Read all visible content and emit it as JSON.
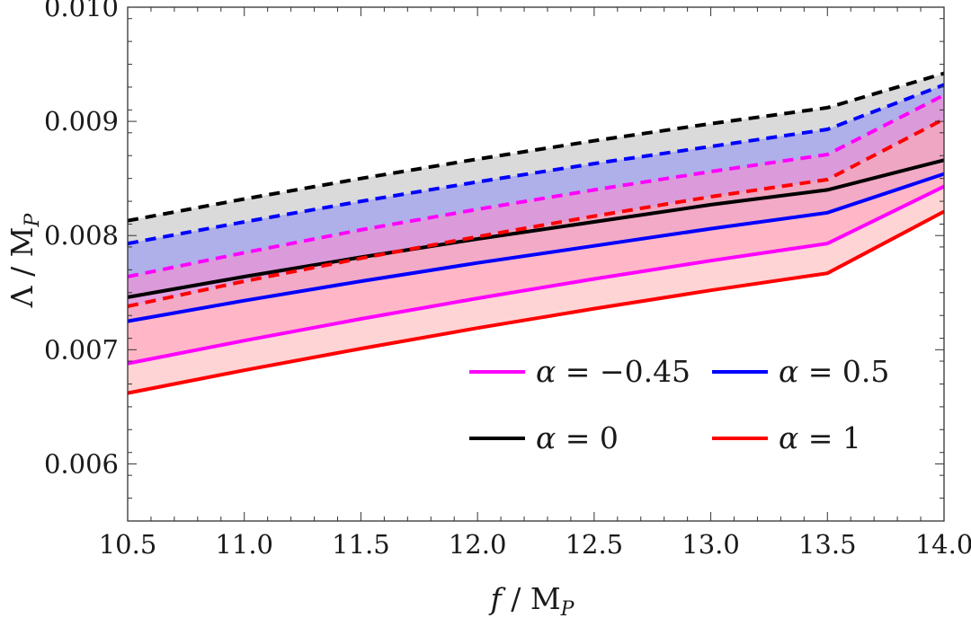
{
  "chart_data": {
    "type": "area",
    "xlabel": "f / MP",
    "ylabel": "Λ / MP",
    "xlim": [
      10.5,
      14.0
    ],
    "ylim": [
      0.0055,
      0.01
    ],
    "x_ticks": [
      10.5,
      11.0,
      11.5,
      12.0,
      12.5,
      13.0,
      13.5,
      14.0
    ],
    "x_tick_labels": [
      "10.5",
      "11.0",
      "11.5",
      "12.0",
      "12.5",
      "13.0",
      "13.5",
      "14.0"
    ],
    "y_ticks": [
      0.006,
      0.007,
      0.008,
      0.009,
      0.01
    ],
    "y_tick_labels": [
      "0.006",
      "0.007",
      "0.008",
      "0.009",
      "0.010"
    ],
    "x": [
      10.5,
      11.0,
      11.5,
      12.0,
      12.5,
      13.0,
      13.5,
      14.0
    ],
    "series": [
      {
        "name": "α = 0",
        "color": "#000000",
        "fill": "#bbbbbb",
        "lower": [
          0.00746,
          0.00764,
          0.00781,
          0.00797,
          0.00812,
          0.00827,
          0.0084,
          0.00866
        ],
        "upper": [
          0.00813,
          0.00832,
          0.0085,
          0.00867,
          0.00883,
          0.00898,
          0.00912,
          0.00942
        ]
      },
      {
        "name": "α = 0.5",
        "color": "#0000ff",
        "fill": "#8c8cf5",
        "lower": [
          0.00725,
          0.00743,
          0.0076,
          0.00776,
          0.00791,
          0.00806,
          0.0082,
          0.00854
        ],
        "upper": [
          0.00793,
          0.00812,
          0.0083,
          0.00847,
          0.00863,
          0.00878,
          0.00893,
          0.00932
        ]
      },
      {
        "name": "α = −0.45",
        "color": "#ff00ff",
        "fill": "#ff88cc",
        "lower": [
          0.00688,
          0.00708,
          0.00727,
          0.00745,
          0.00762,
          0.00778,
          0.00793,
          0.00843
        ],
        "upper": [
          0.00764,
          0.00785,
          0.00805,
          0.00823,
          0.0084,
          0.00856,
          0.00871,
          0.00923
        ]
      },
      {
        "name": "α = 1",
        "color": "#ff0000",
        "fill": "#ffb0b0",
        "lower": [
          0.00662,
          0.00682,
          0.00701,
          0.00719,
          0.00736,
          0.00752,
          0.00767,
          0.00821
        ],
        "upper": [
          0.00738,
          0.0076,
          0.0078,
          0.00799,
          0.00817,
          0.00834,
          0.00849,
          0.00902
        ]
      }
    ],
    "legend": {
      "placement": "bottom-right",
      "entries": [
        {
          "label_greek": "α",
          "label_value": "= −0.45",
          "color": "#ff00ff"
        },
        {
          "label_greek": "α",
          "label_value": "= 0.5",
          "color": "#0000ff"
        },
        {
          "label_greek": "α",
          "label_value": "= 0",
          "color": "#000000"
        },
        {
          "label_greek": "α",
          "label_value": "= 1",
          "color": "#ff0000"
        }
      ]
    },
    "line_styles": {
      "lower_bound": "solid",
      "upper_bound": "dashed"
    }
  },
  "axis_text": {
    "x_main": "f",
    "x_sep": " / M",
    "x_sub": "P",
    "y_main": "Λ",
    "y_sep": " / M",
    "y_sub": "P"
  }
}
